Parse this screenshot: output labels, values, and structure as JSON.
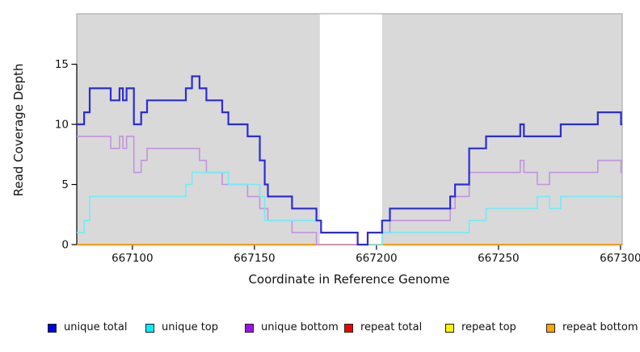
{
  "figure": {
    "background": "#ffffff",
    "plot_border_color": "#a0a0a0",
    "axis_color": "#000000",
    "tick_label_color": "#111111"
  },
  "chart_data": {
    "type": "line",
    "subtype": "step",
    "title": "",
    "xlabel": "Coordinate in Reference Genome",
    "ylabel": "Read Coverage Depth",
    "xlim": [
      667077.2,
      667300.7
    ],
    "ylim": [
      0,
      19.2
    ],
    "x_ticks": [
      667100,
      667150,
      667200,
      667250,
      667300
    ],
    "y_ticks": [
      0,
      5,
      10,
      15
    ],
    "grid": false,
    "plot_background": "#d9d9d9",
    "gap_band": {
      "x_start": 667176.8,
      "x_end": 667202.3,
      "color": "#ffffff"
    },
    "legend_position": "bottom",
    "series": [
      {
        "name": "unique total",
        "color": "#2c2cd6",
        "legend_color": "#0000e8",
        "line_width": 2.2,
        "steps": [
          [
            667077.2,
            10
          ],
          [
            667080.2,
            11
          ],
          [
            667082.5,
            13
          ],
          [
            667091.1,
            12
          ],
          [
            667094.7,
            13
          ],
          [
            667096.1,
            12
          ],
          [
            667097.6,
            13
          ],
          [
            667100.6,
            10
          ],
          [
            667103.6,
            11
          ],
          [
            667106.0,
            12
          ],
          [
            667121.9,
            13
          ],
          [
            667124.4,
            14
          ],
          [
            667127.5,
            13
          ],
          [
            667130.3,
            12
          ],
          [
            667136.8,
            11
          ],
          [
            667139.3,
            10
          ],
          [
            667147.2,
            9
          ],
          [
            667152.2,
            7
          ],
          [
            667154.2,
            5
          ],
          [
            667155.5,
            4
          ],
          [
            667165.4,
            3
          ],
          [
            667175.4,
            2
          ],
          [
            667177.3,
            1
          ],
          [
            667192.3,
            0
          ],
          [
            667196.4,
            1
          ],
          [
            667202.3,
            2
          ],
          [
            667205.5,
            3
          ],
          [
            667230.2,
            4
          ],
          [
            667232.2,
            5
          ],
          [
            667238.0,
            8
          ],
          [
            667244.9,
            9
          ],
          [
            667258.9,
            10
          ],
          [
            667260.4,
            9
          ],
          [
            667275.5,
            10
          ],
          [
            667290.7,
            11
          ],
          [
            667300.2,
            10
          ]
        ]
      },
      {
        "name": "unique top",
        "color": "#72ecf4",
        "legend_color": "#00f0ff",
        "line_width": 1.6,
        "steps": [
          [
            667077.2,
            1
          ],
          [
            667080.2,
            2
          ],
          [
            667082.5,
            4
          ],
          [
            667121.9,
            5
          ],
          [
            667124.4,
            6
          ],
          [
            667139.3,
            5
          ],
          [
            667152.2,
            4
          ],
          [
            667154.2,
            2
          ],
          [
            667177.3,
            1
          ],
          [
            667192.3,
            0
          ],
          [
            667202.3,
            1
          ],
          [
            667238.0,
            2
          ],
          [
            667244.9,
            3
          ],
          [
            667265.9,
            4
          ],
          [
            667270.9,
            3
          ],
          [
            667275.5,
            4
          ]
        ]
      },
      {
        "name": "unique bottom",
        "color": "#c493de",
        "legend_color": "#9d12e3",
        "line_width": 1.6,
        "steps": [
          [
            667077.2,
            9
          ],
          [
            667091.1,
            8
          ],
          [
            667094.7,
            9
          ],
          [
            667096.1,
            8
          ],
          [
            667097.6,
            9
          ],
          [
            667100.6,
            6
          ],
          [
            667103.6,
            7
          ],
          [
            667106.0,
            8
          ],
          [
            667127.5,
            7
          ],
          [
            667130.3,
            6
          ],
          [
            667136.8,
            5
          ],
          [
            667147.2,
            4
          ],
          [
            667152.2,
            3
          ],
          [
            667155.5,
            2
          ],
          [
            667165.4,
            1
          ],
          [
            667175.4,
            0
          ],
          [
            667196.4,
            1
          ],
          [
            667205.5,
            2
          ],
          [
            667230.2,
            3
          ],
          [
            667232.2,
            4
          ],
          [
            667238.0,
            6
          ],
          [
            667258.9,
            7
          ],
          [
            667260.4,
            6
          ],
          [
            667265.9,
            5
          ],
          [
            667270.9,
            6
          ],
          [
            667290.7,
            7
          ],
          [
            667300.2,
            6
          ]
        ]
      },
      {
        "name": "repeat total",
        "color": "#e04a6a",
        "legend_color": "#f20000",
        "line_width": 1.6,
        "steps": [
          [
            667077.2,
            0
          ]
        ]
      },
      {
        "name": "repeat top",
        "color": "#f0e020",
        "legend_color": "#fbf400",
        "line_width": 1.6,
        "steps": [
          [
            667077.2,
            0
          ]
        ]
      },
      {
        "name": "repeat bottom",
        "color": "#ff9517",
        "legend_color": "#ffa500",
        "line_width": 2.0,
        "steps": [
          [
            667077.2,
            0
          ]
        ]
      }
    ],
    "draw_order": [
      3,
      4,
      5,
      2,
      1,
      0
    ]
  },
  "legend": {
    "items": [
      {
        "label": "unique total"
      },
      {
        "label": "unique top"
      },
      {
        "label": "unique bottom"
      },
      {
        "label": "repeat total"
      },
      {
        "label": "repeat top"
      },
      {
        "label": "repeat bottom"
      }
    ]
  }
}
